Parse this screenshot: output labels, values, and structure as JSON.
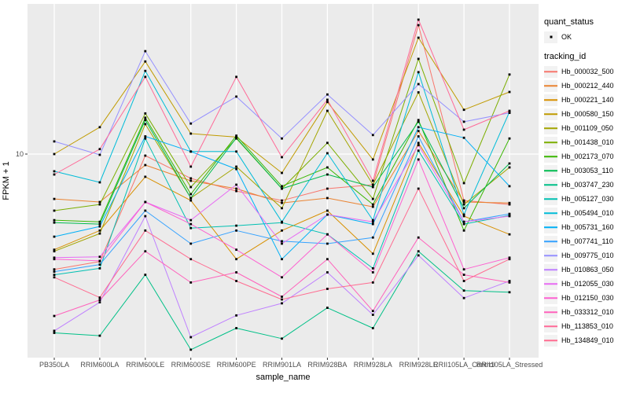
{
  "axes": {
    "y_title": "FPKM + 1",
    "x_title": "sample_name",
    "y_tick_label": "10"
  },
  "legend": {
    "quant_status_title": "quant_status",
    "quant_status_ok_label": "OK",
    "tracking_id_title": "tracking_id"
  },
  "style": {
    "panel_background": "#EBEBEB",
    "gridline_color": "#FFFFFF",
    "tick_color": "#333333",
    "tick_label_color": "#4D4D4D",
    "point_color": "#000000",
    "legend_key_background": "#F2F2F2"
  },
  "chart_data": {
    "type": "line",
    "title": "",
    "xlabel": "sample_name",
    "ylabel": "FPKM + 1",
    "y_scale": "log10",
    "y_ticks": [
      10
    ],
    "y_range_approx": [
      0.96,
      58
    ],
    "grid": "major-only",
    "legend_position": "right",
    "point_marker": "small black square (quant_status = OK)",
    "categories": [
      "PB350LA",
      "RRIM600LA",
      "RRIM600LE",
      "RRIM600SE",
      "RRIM600PE",
      "RRIM901LA",
      "RRIM928BA",
      "RRIM928LA",
      "RRIM928LE",
      "RRII105LA_Control",
      "RRII105LA_Stressed"
    ],
    "series": [
      {
        "name": "Hb_000032_500",
        "color": "#F8766D",
        "values": [
          2.59,
          2.84,
          9.82,
          7.52,
          6.48,
          5.8,
          6.67,
          6.98,
          45.3,
          5.8,
          5.54
        ]
      },
      {
        "name": "Hb_000212_440",
        "color": "#EA8331",
        "values": [
          5.91,
          5.7,
          8.79,
          7.31,
          6.67,
          5.64,
          5.97,
          5.39,
          13.1,
          5.7,
          5.64
        ]
      },
      {
        "name": "Hb_000221_140",
        "color": "#D89000",
        "values": [
          3.26,
          4.08,
          7.66,
          5.8,
          2.92,
          4.08,
          5.15,
          3.11,
          11.4,
          4.83,
          3.9
        ]
      },
      {
        "name": "Hb_000580_150",
        "color": "#C09B00",
        "values": [
          10.0,
          13.7,
          29.6,
          12.7,
          12.2,
          8.02,
          18.4,
          9.38,
          39.1,
          16.8,
          20.7
        ]
      },
      {
        "name": "Hb_001109_050",
        "color": "#A3A500",
        "values": [
          3.2,
          3.94,
          14.2,
          5.97,
          8.63,
          5.3,
          16.6,
          6.98,
          20.6,
          5.54,
          8.55
        ]
      },
      {
        "name": "Hb_001438_010",
        "color": "#7CAE00",
        "values": [
          5.15,
          5.54,
          16.1,
          6.79,
          12.0,
          6.67,
          11.4,
          5.91,
          30.5,
          7.11,
          25.4
        ]
      },
      {
        "name": "Hb_002173_070",
        "color": "#39B600",
        "values": [
          4.61,
          4.52,
          15.3,
          6.25,
          12.4,
          6.86,
          8.55,
          5.54,
          14.9,
          4.08,
          12.0
        ]
      },
      {
        "name": "Hb_003053_110",
        "color": "#00BB4E",
        "values": [
          4.48,
          4.4,
          14.9,
          5.97,
          12.1,
          6.67,
          7.87,
          6.79,
          14.6,
          5.3,
          8.95
        ]
      },
      {
        "name": "Hb_003747_230",
        "color": "#00C087",
        "values": [
          1.23,
          1.19,
          2.43,
          1.01,
          1.3,
          1.15,
          1.65,
          1.3,
          3.2,
          2.02,
          1.98
        ]
      },
      {
        "name": "Hb_005127_030",
        "color": "#00C0B2",
        "values": [
          2.43,
          2.62,
          12.0,
          4.2,
          4.32,
          4.48,
          3.9,
          2.62,
          10.4,
          4.4,
          4.87
        ]
      },
      {
        "name": "Hb_005494_010",
        "color": "#00BCD8",
        "values": [
          8.17,
          7.18,
          26.5,
          10.3,
          10.3,
          4.52,
          10.1,
          4.61,
          26.1,
          4.92,
          16.4
        ]
      },
      {
        "name": "Hb_005731_160",
        "color": "#00B0F6",
        "values": [
          3.8,
          4.28,
          12.3,
          10.3,
          8.39,
          2.92,
          4.92,
          4.4,
          13.7,
          12.1,
          6.86
        ]
      },
      {
        "name": "Hb_007741_110",
        "color": "#35A2FF",
        "values": [
          2.52,
          2.74,
          5.15,
          3.5,
          4.08,
          3.6,
          3.5,
          3.76,
          12.3,
          4.52,
          4.96
        ]
      },
      {
        "name": "Hb_009775_010",
        "color": "#9590FF",
        "values": [
          11.6,
          9.91,
          33.4,
          14.3,
          19.6,
          12.0,
          20.1,
          12.5,
          22.7,
          14.6,
          16.2
        ]
      },
      {
        "name": "Hb_010863_050",
        "color": "#BF80FF",
        "values": [
          1.26,
          1.76,
          4.83,
          1.17,
          1.51,
          1.74,
          2.5,
          1.52,
          3.05,
          1.85,
          2.26
        ]
      },
      {
        "name": "Hb_012055_030",
        "color": "#E76BF3",
        "values": [
          2.97,
          3.0,
          5.7,
          4.61,
          6.98,
          3.5,
          4.92,
          4.52,
          11.1,
          4.52,
          4.83
        ]
      },
      {
        "name": "Hb_012150_030",
        "color": "#FD61D1",
        "values": [
          2.92,
          2.86,
          5.7,
          4.4,
          3.26,
          2.36,
          3.9,
          2.5,
          9.38,
          2.59,
          2.97
        ]
      },
      {
        "name": "Hb_033312_010",
        "color": "#FF62BC",
        "values": [
          1.5,
          1.81,
          3.2,
          2.22,
          2.5,
          1.88,
          2.92,
          1.59,
          3.76,
          2.43,
          2.22
        ]
      },
      {
        "name": "Hb_113853_010",
        "color": "#FF6A98",
        "values": [
          7.87,
          10.6,
          24.7,
          8.63,
          24.7,
          9.64,
          18.9,
          7.31,
          48.3,
          13.3,
          16.6
        ]
      },
      {
        "name": "Hb_134849_010",
        "color": "#FF6C91",
        "values": [
          2.36,
          1.86,
          4.08,
          2.92,
          2.26,
          1.82,
          2.06,
          2.22,
          6.67,
          2.26,
          2.92
        ]
      }
    ]
  }
}
